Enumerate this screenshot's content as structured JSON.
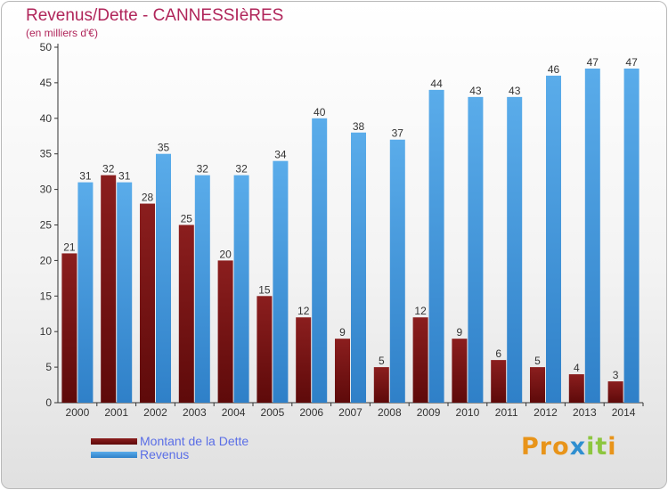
{
  "title": "Revenus/Dette - CANNESSIèRES",
  "subtitle": "(en milliers d'€)",
  "legend": {
    "debt_label": "Montant de la Dette",
    "revenue_label": "Revenus"
  },
  "logo": {
    "text": "Proxiti",
    "letters": [
      "P",
      "r",
      "o",
      "x",
      "i",
      "t",
      "i"
    ],
    "colors": [
      "#e8941a",
      "#e8941a",
      "#e8941a",
      "#2f8fd0",
      "#8dc63f",
      "#8dc63f",
      "#e8941a"
    ]
  },
  "colors": {
    "debt": "#8b1e1e",
    "debt_dark": "#5e0a0a",
    "revenue": "#5aacea",
    "revenue_dark": "#2f80c8",
    "title": "#b0255a",
    "legend_text": "#5a6ee6"
  },
  "chart_data": {
    "type": "bar",
    "categories": [
      "2000",
      "2001",
      "2002",
      "2003",
      "2004",
      "2005",
      "2006",
      "2007",
      "2008",
      "2009",
      "2010",
      "2011",
      "2012",
      "2013",
      "2014"
    ],
    "series": [
      {
        "name": "Montant de la Dette",
        "values": [
          21,
          32,
          28,
          25,
          20,
          15,
          12,
          9,
          5,
          12,
          9,
          6,
          5,
          4,
          3
        ]
      },
      {
        "name": "Revenus",
        "values": [
          31,
          31,
          35,
          32,
          32,
          34,
          40,
          38,
          37,
          44,
          43,
          43,
          46,
          47,
          47
        ]
      }
    ],
    "yticks": [
      "0",
      "5",
      "10",
      "15",
      "20",
      "25",
      "30",
      "35",
      "40",
      "45",
      "50"
    ],
    "ylim": [
      0,
      50
    ],
    "grid": false,
    "legend_position": "bottom-left"
  }
}
